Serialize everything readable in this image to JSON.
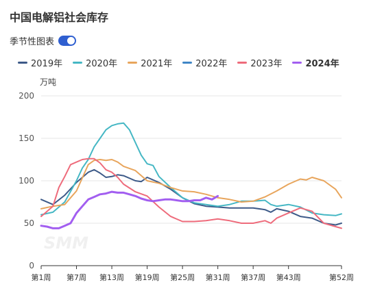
{
  "title": "中国电解铝社会库存",
  "toggle": {
    "label": "季节性图表",
    "on": true
  },
  "colors": {
    "2019年": "#3d5a88",
    "2020年": "#45b7c4",
    "2021年": "#e8a55c",
    "2022年": "#3f86c6",
    "2023年": "#ee6b7b",
    "2024年": "#a25ef0"
  },
  "chart_data": {
    "type": "line",
    "title": "中国电解铝社会库存",
    "ylabel": "万吨",
    "ylim": [
      0,
      200
    ],
    "yticks": [
      0,
      50,
      100,
      150,
      200
    ],
    "xlim": [
      1,
      52
    ],
    "xticks": [
      1,
      7,
      13,
      19,
      25,
      31,
      37,
      43,
      52
    ],
    "xtick_labels": [
      "第1周",
      "第7周",
      "第13周",
      "第19周",
      "第25周",
      "第31周",
      "第37周",
      "第43周",
      "第52周"
    ],
    "grid": true,
    "legend": "top",
    "watermark": "SMM",
    "series": [
      {
        "name": "2019年",
        "bold": false,
        "x": [
          1,
          3,
          5,
          7,
          9,
          10,
          11,
          12,
          13,
          14,
          15,
          17,
          18,
          19,
          21,
          23,
          25,
          27,
          29,
          31,
          33,
          35,
          37,
          39,
          40,
          41,
          43,
          45,
          47,
          49,
          51,
          52
        ],
        "values": [
          78,
          72,
          83,
          98,
          110,
          113,
          109,
          104,
          105,
          107,
          106,
          100,
          99,
          104,
          98,
          90,
          80,
          73,
          70,
          69,
          68,
          68,
          68,
          66,
          63,
          67,
          64,
          58,
          56,
          50,
          48,
          50
        ]
      },
      {
        "name": "2020年",
        "bold": false,
        "x": [
          1,
          3,
          5,
          7,
          8,
          9,
          10,
          11,
          12,
          13,
          14,
          15,
          16,
          17,
          18,
          19,
          20,
          21,
          23,
          25,
          27,
          29,
          31,
          33,
          35,
          37,
          39,
          40,
          41,
          43,
          45,
          47,
          49,
          51,
          52
        ],
        "values": [
          60,
          63,
          75,
          100,
          115,
          125,
          140,
          150,
          160,
          165,
          167,
          168,
          160,
          145,
          130,
          120,
          118,
          105,
          92,
          80,
          74,
          72,
          70,
          72,
          76,
          76,
          77,
          72,
          70,
          72,
          69,
          62,
          60,
          59,
          61
        ]
      },
      {
        "name": "2021年",
        "bold": false,
        "x": [
          1,
          3,
          5,
          7,
          9,
          10,
          11,
          12,
          13,
          14,
          15,
          17,
          19,
          21,
          23,
          25,
          27,
          29,
          31,
          33,
          35,
          37,
          39,
          41,
          43,
          45,
          46,
          47,
          48,
          49,
          51,
          52
        ],
        "values": [
          67,
          70,
          72,
          88,
          119,
          124,
          125,
          124,
          125,
          122,
          117,
          112,
          100,
          97,
          92,
          88,
          87,
          84,
          80,
          78,
          75,
          76,
          81,
          88,
          96,
          102,
          101,
          104,
          102,
          100,
          90,
          80
        ]
      },
      {
        "name": "2023年",
        "bold": false,
        "x": [
          1,
          3,
          4,
          5,
          6,
          7,
          8,
          9,
          10,
          11,
          12,
          13,
          14,
          15,
          17,
          19,
          21,
          23,
          25,
          27,
          29,
          31,
          33,
          35,
          37,
          39,
          40,
          41,
          43,
          45,
          47,
          49,
          51,
          52
        ],
        "values": [
          58,
          70,
          92,
          105,
          119,
          122,
          125,
          126,
          126,
          121,
          113,
          110,
          104,
          96,
          87,
          82,
          69,
          58,
          52,
          52,
          53,
          55,
          53,
          50,
          50,
          53,
          50,
          56,
          62,
          68,
          64,
          50,
          46,
          44
        ]
      },
      {
        "name": "2024年",
        "bold": true,
        "x": [
          1,
          2,
          3,
          4,
          5,
          6,
          7,
          8,
          9,
          10,
          11,
          12,
          13,
          14,
          15,
          16,
          17,
          18,
          19,
          20,
          21,
          22,
          23,
          24,
          25,
          26,
          27,
          28,
          29,
          30,
          31
        ],
        "values": [
          47,
          46,
          44,
          44,
          47,
          50,
          62,
          70,
          78,
          81,
          84,
          85,
          87,
          86,
          86,
          84,
          82,
          79,
          77,
          76,
          77,
          78,
          78,
          77,
          76,
          76,
          77,
          77,
          80,
          78,
          82
        ]
      }
    ]
  }
}
